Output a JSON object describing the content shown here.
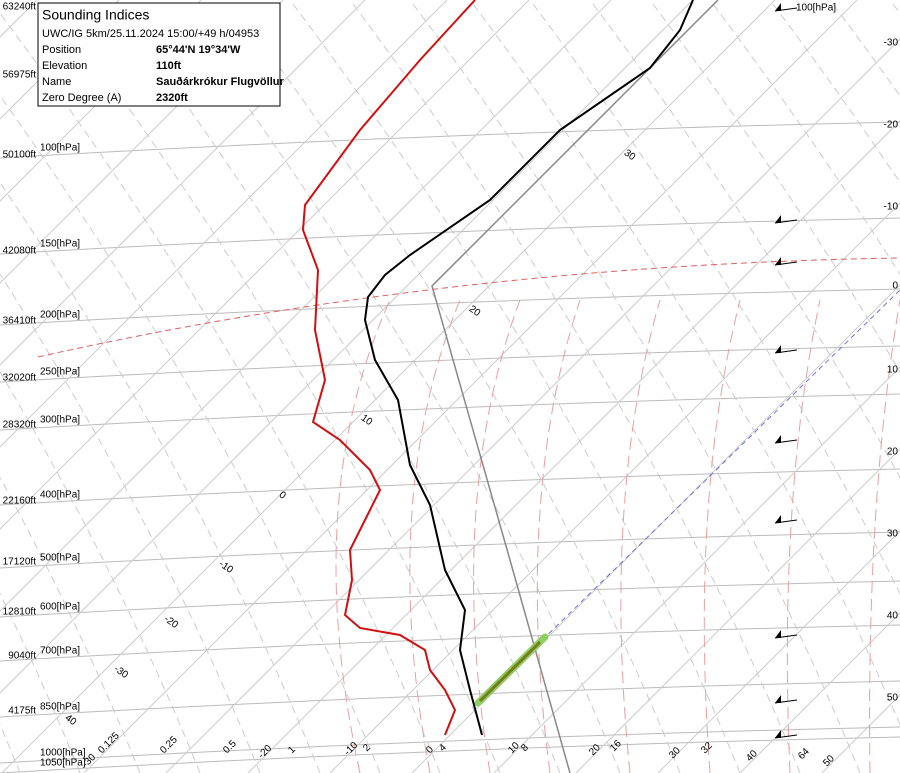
{
  "info": {
    "title": "Sounding Indices",
    "subtitle": "UWC/IG 5km/25.11.2024 15:00/+49 h/04953",
    "rows": [
      [
        "Position",
        "65°44'N 19°34'W"
      ],
      [
        "Elevation",
        "110ft"
      ],
      [
        "Name",
        "Sauðárkrókur Flugvöllur"
      ],
      [
        "Zero Degree (A)",
        "2320ft"
      ]
    ]
  },
  "heights": [
    "63240ft",
    "56975ft",
    "50100ft",
    "42080ft",
    "36410ft",
    "32020ft",
    "28320ft",
    "22160ft",
    "17120ft",
    "12810ft",
    "9040ft",
    "4175ft"
  ],
  "pressures": [
    "100[hPa]",
    "150[hPa]",
    "200[hPa]",
    "250[hPa]",
    "300[hPa]",
    "400[hPa]",
    "500[hPa]",
    "600[hPa]",
    "700[hPa]",
    "850[hPa]",
    "1000[hPa]",
    "1050[hPa]"
  ],
  "top_pressure": "100[hPa]",
  "right_labels": [
    "-30",
    "-20",
    "-10",
    "0",
    "10",
    "20",
    "30",
    "40",
    "50"
  ],
  "isotherm_labels": [
    "30",
    "20",
    "10",
    "0",
    "-10",
    "-20",
    "-30",
    "40"
  ],
  "bottom_labels": [
    "-30",
    "0.125",
    "0.25",
    "0.5",
    "-20",
    "1",
    "-10",
    "2",
    "0",
    "4",
    "10",
    "8",
    "20",
    "16",
    "30",
    "32",
    "40",
    "64",
    "50"
  ]
}
